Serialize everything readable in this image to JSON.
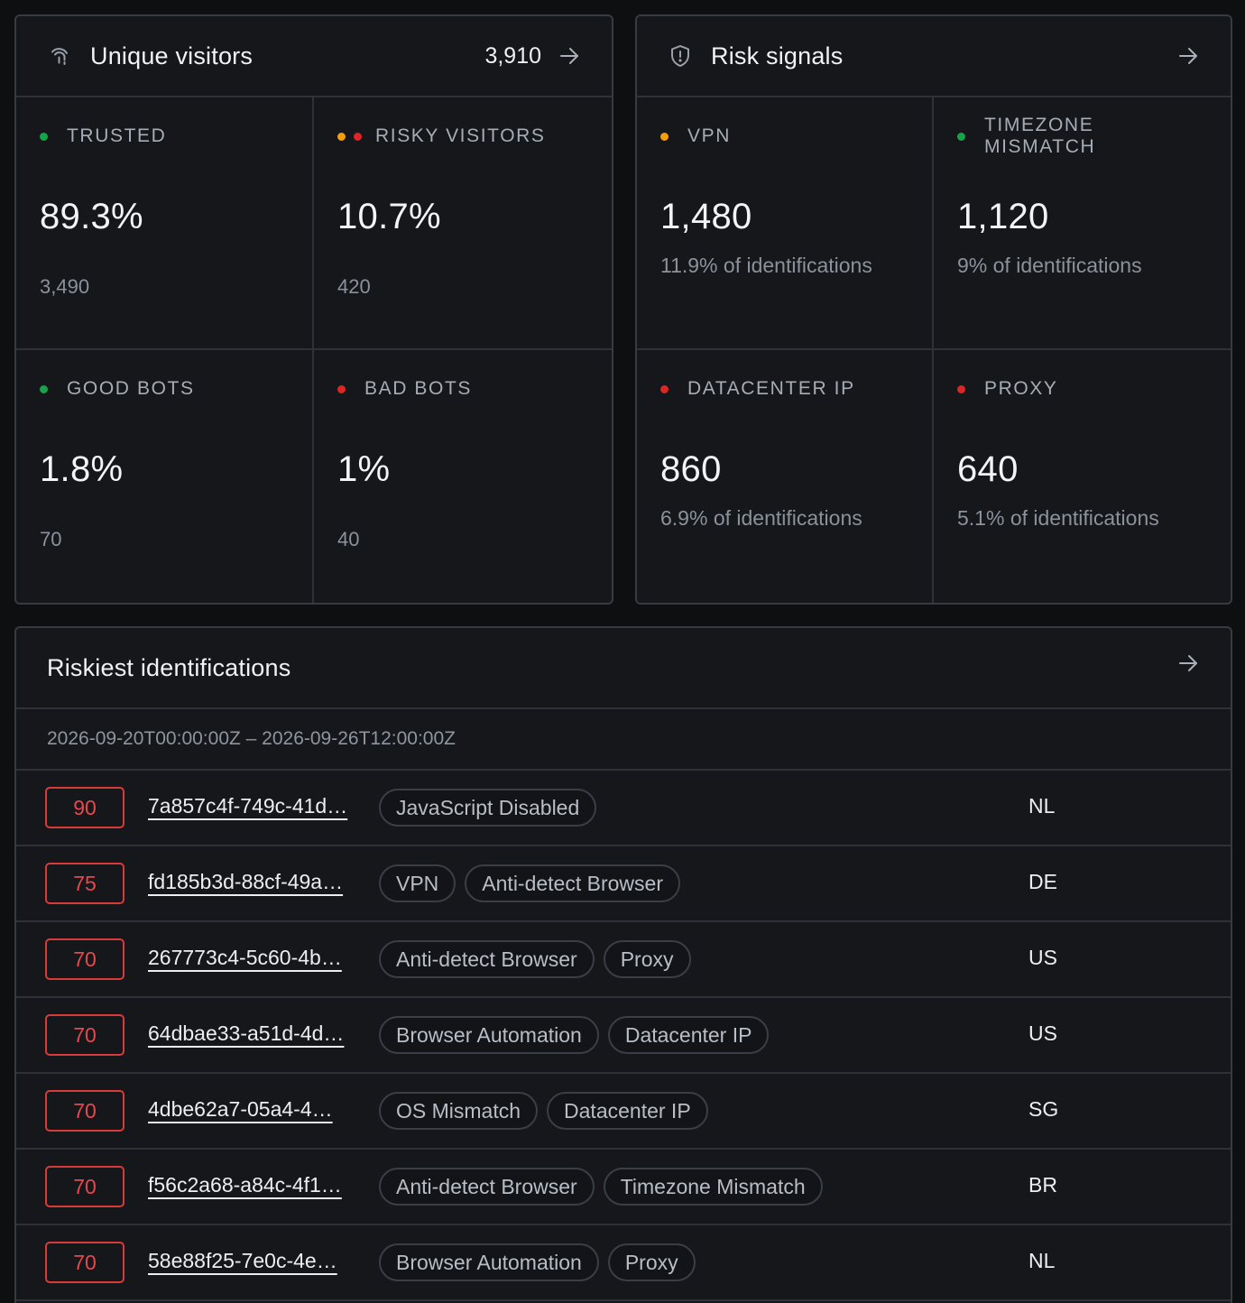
{
  "visitors": {
    "title": "Unique visitors",
    "count": "3,910",
    "cells": [
      {
        "label": "TRUSTED",
        "value": "89.3%",
        "sub": "3,490",
        "dots": [
          "#16a34a"
        ]
      },
      {
        "label": "RISKY VISITORS",
        "value": "10.7%",
        "sub": "420",
        "dots": [
          "#f59e0b",
          "#dc2626"
        ]
      },
      {
        "label": "GOOD BOTS",
        "value": "1.8%",
        "sub": "70",
        "dots": [
          "#16a34a"
        ]
      },
      {
        "label": "BAD BOTS",
        "value": "1%",
        "sub": "40",
        "dots": [
          "#dc2626"
        ]
      }
    ]
  },
  "risk": {
    "title": "Risk signals",
    "cells": [
      {
        "label": "VPN",
        "value": "1,480",
        "sub": "11.9% of identifications",
        "dot": "#f59e0b"
      },
      {
        "label": "TIMEZONE MISMATCH",
        "value": "1,120",
        "sub": "9% of identifications",
        "dot": "#16a34a"
      },
      {
        "label": "DATACENTER IP",
        "value": "860",
        "sub": "6.9% of identifications",
        "dot": "#dc2626"
      },
      {
        "label": "PROXY",
        "value": "640",
        "sub": "5.1% of identifications",
        "dot": "#dc2626"
      }
    ]
  },
  "riskiest": {
    "title": "Riskiest identifications",
    "range": "2026-09-20T00:00:00Z – 2026-09-26T12:00:00Z",
    "rows": [
      {
        "score": "90",
        "id": "7a857c4f-749c-41d…",
        "tags": [
          "JavaScript Disabled"
        ],
        "country": "NL"
      },
      {
        "score": "75",
        "id": "fd185b3d-88cf-49a…",
        "tags": [
          "VPN",
          "Anti-detect Browser"
        ],
        "country": "DE"
      },
      {
        "score": "70",
        "id": "267773c4-5c60-4b…",
        "tags": [
          "Anti-detect Browser",
          "Proxy"
        ],
        "country": "US"
      },
      {
        "score": "70",
        "id": "64dbae33-a51d-4d…",
        "tags": [
          "Browser Automation",
          "Datacenter IP"
        ],
        "country": "US"
      },
      {
        "score": "70",
        "id": "4dbe62a7-05a4-4…",
        "tags": [
          "OS Mismatch",
          "Datacenter IP"
        ],
        "country": "SG"
      },
      {
        "score": "70",
        "id": "f56c2a68-a84c-4f1…",
        "tags": [
          "Anti-detect Browser",
          "Timezone Mismatch"
        ],
        "country": "BR"
      },
      {
        "score": "70",
        "id": "58e88f25-7e0c-4e…",
        "tags": [
          "Browser Automation",
          "Proxy"
        ],
        "country": "NL"
      }
    ]
  },
  "icons": {
    "visitors": "fingerprint-icon",
    "risk": "shield-icon",
    "arrow": "arrow-right-icon"
  },
  "colors": {
    "background": "#0e0f11",
    "card": "#15171a",
    "border": "#363b42",
    "score": "#e5484d"
  }
}
